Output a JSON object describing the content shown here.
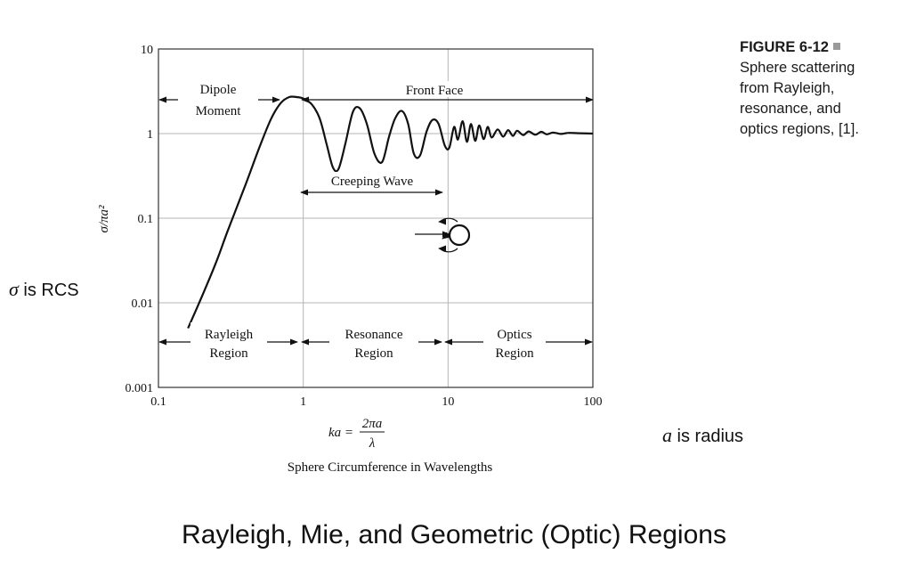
{
  "caption": {
    "figure_label": "FIGURE 6-12",
    "text_lines": [
      "Sphere scattering",
      "from Rayleigh,",
      "resonance, and",
      "optics regions, [1]."
    ]
  },
  "notes": {
    "sigma_symbol": "σ",
    "sigma_text": " is RCS",
    "a_symbol": "a",
    "a_text": " is radius"
  },
  "slide_title": "Rayleigh, Mie, and Geometric (Optic) Regions",
  "chart_data": {
    "type": "line",
    "x_scale": "log",
    "y_scale": "log",
    "xlim": [
      0.1,
      100
    ],
    "ylim": [
      0.001,
      10
    ],
    "x_ticks": [
      "0.1",
      "1",
      "10",
      "100"
    ],
    "y_ticks": [
      "0.001",
      "0.01",
      "0.1",
      "1",
      "10"
    ],
    "ylabel": "σ/πa²",
    "xlabel_formula": {
      "lhs": "ka =",
      "numerator": "2πa",
      "denominator": "λ"
    },
    "xlabel": "Sphere Circumference in Wavelengths",
    "grid": true,
    "series": [
      {
        "x": [
          0.16,
          0.2,
          0.25,
          0.3,
          0.4,
          0.5,
          0.6,
          0.7,
          0.8,
          0.9,
          1.0,
          1.15,
          1.3,
          1.45,
          1.6,
          1.75,
          1.95,
          2.2,
          2.45,
          2.75,
          3.1,
          3.5,
          3.9,
          4.3,
          4.8,
          5.3,
          5.8,
          6.4,
          7.1,
          7.8,
          8.6,
          9.5,
          10.2,
          11.0,
          11.7,
          12.6,
          13.5,
          14.4,
          15.4,
          16.4,
          17.6,
          18.8,
          20,
          22,
          24,
          26,
          28,
          30,
          33,
          36,
          40,
          44,
          48,
          53,
          60,
          68,
          80,
          100
        ],
        "y": [
          0.005,
          0.012,
          0.03,
          0.07,
          0.25,
          0.7,
          1.5,
          2.3,
          2.7,
          2.7,
          2.6,
          2.2,
          1.5,
          0.75,
          0.4,
          0.38,
          0.75,
          1.8,
          2.0,
          1.3,
          0.58,
          0.46,
          0.9,
          1.5,
          1.85,
          1.3,
          0.58,
          0.55,
          1.05,
          1.45,
          1.3,
          0.72,
          0.68,
          1.2,
          0.85,
          1.4,
          0.8,
          1.3,
          0.82,
          1.25,
          0.86,
          1.2,
          0.9,
          1.12,
          0.92,
          1.1,
          0.94,
          1.08,
          0.96,
          1.06,
          0.97,
          1.05,
          0.98,
          1.03,
          0.99,
          1.02,
          1.01,
          1.0
        ]
      }
    ],
    "annotations": {
      "dipole_moment": [
        "Dipole",
        "Moment"
      ],
      "front_face": "Front Face",
      "creeping_wave": "Creeping Wave",
      "regions": [
        {
          "name": [
            "Rayleigh",
            "Region"
          ],
          "x_range": [
            0.1,
            1
          ]
        },
        {
          "name": [
            "Resonance",
            "Region"
          ],
          "x_range": [
            1,
            10
          ]
        },
        {
          "name": [
            "Optics",
            "Region"
          ],
          "x_range": [
            10,
            100
          ]
        }
      ]
    }
  }
}
